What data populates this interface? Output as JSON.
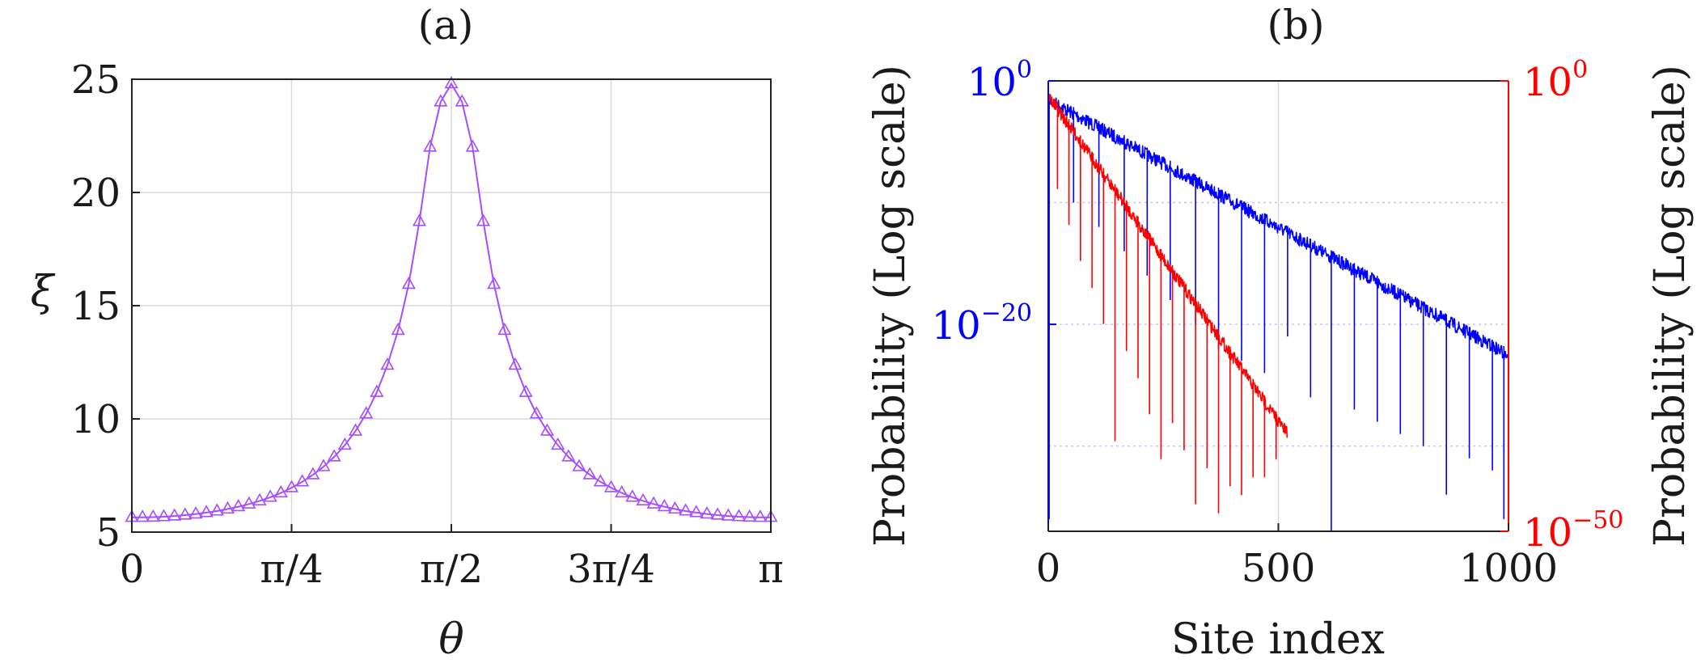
{
  "chart_data": [
    {
      "type": "line",
      "title": "(a)",
      "xlabel": "θ",
      "ylabel": "ξ",
      "xlim": [
        0,
        3.14159
      ],
      "ylim": [
        5,
        25
      ],
      "grid": true,
      "xticks": [
        {
          "value": 0,
          "label": "0"
        },
        {
          "value": 0.7854,
          "label": "π/4"
        },
        {
          "value": 1.5708,
          "label": "π/2"
        },
        {
          "value": 2.3562,
          "label": "3π/4"
        },
        {
          "value": 3.14159,
          "label": "π"
        }
      ],
      "yticks": [
        {
          "value": 5,
          "label": "5"
        },
        {
          "value": 10,
          "label": "10"
        },
        {
          "value": 15,
          "label": "15"
        },
        {
          "value": 20,
          "label": "20"
        },
        {
          "value": 25,
          "label": "25"
        }
      ],
      "series": [
        {
          "name": "ξ(θ)",
          "color": "#a64dff",
          "marker": "triangle",
          "x": [
            0.0,
            0.0524,
            0.1047,
            0.1571,
            0.2094,
            0.2618,
            0.3142,
            0.3665,
            0.4189,
            0.4712,
            0.5236,
            0.576,
            0.6283,
            0.6807,
            0.733,
            0.7854,
            0.8378,
            0.8901,
            0.9425,
            0.9948,
            1.0472,
            1.0996,
            1.1519,
            1.2043,
            1.2566,
            1.309,
            1.3614,
            1.4137,
            1.4661,
            1.5184,
            1.5708,
            1.6232,
            1.6755,
            1.7279,
            1.7802,
            1.8326,
            1.885,
            1.9373,
            1.9897,
            2.042,
            2.0944,
            2.1468,
            2.1991,
            2.2515,
            2.3038,
            2.3562,
            2.4086,
            2.4609,
            2.5133,
            2.5656,
            2.618,
            2.6704,
            2.7227,
            2.7751,
            2.8274,
            2.8798,
            2.9322,
            2.9845,
            3.0369,
            3.0892,
            3.1416
          ],
          "y": [
            5.65,
            5.65,
            5.66,
            5.68,
            5.71,
            5.75,
            5.8,
            5.86,
            5.93,
            6.02,
            6.12,
            6.24,
            6.38,
            6.54,
            6.73,
            6.96,
            7.22,
            7.53,
            7.89,
            8.32,
            8.84,
            9.46,
            10.22,
            11.17,
            12.37,
            13.91,
            15.94,
            18.72,
            22.0,
            24.0,
            24.8,
            24.0,
            22.0,
            18.72,
            15.94,
            13.91,
            12.37,
            11.17,
            10.22,
            9.46,
            8.84,
            8.32,
            7.89,
            7.53,
            7.22,
            6.96,
            6.73,
            6.54,
            6.38,
            6.24,
            6.12,
            6.02,
            5.93,
            5.86,
            5.8,
            5.75,
            5.71,
            5.68,
            5.66,
            5.65,
            5.65
          ]
        }
      ]
    },
    {
      "type": "line",
      "title": "(b)",
      "xlabel": "Site index",
      "ylabel_left": "Probability (Log scale)",
      "ylabel_right": "Probability (Log scale)",
      "xlim": [
        0,
        1000
      ],
      "xticks": [
        {
          "value": 0,
          "label": "0"
        },
        {
          "value": 500,
          "label": "500"
        },
        {
          "value": 1000,
          "label": "1000"
        }
      ],
      "left_axis": {
        "color": "#0000ff",
        "scale": "log10",
        "ylim_exp": [
          -37,
          0
        ],
        "ticks": [
          {
            "exp": 0,
            "base": "10",
            "sup": "0"
          },
          {
            "exp": -20,
            "base": "10",
            "sup": "−20"
          }
        ]
      },
      "right_axis": {
        "color": "#ff0000",
        "scale": "log10",
        "ylim_exp": [
          -50,
          0
        ],
        "ticks": [
          {
            "exp": 0,
            "base": "10",
            "sup": "0"
          },
          {
            "exp": -50,
            "base": "10",
            "sup": "−50"
          }
        ]
      },
      "series": [
        {
          "name": "blue (left axis)",
          "axis": "left",
          "color": "#0000ff",
          "start_log10": -1,
          "end_log10": -22,
          "x_end": 1000,
          "dips": [
            {
              "x": 2,
              "log10": -36
            },
            {
              "x": 55,
              "log10": -10
            },
            {
              "x": 110,
              "log10": -12
            },
            {
              "x": 165,
              "log10": -14
            },
            {
              "x": 215,
              "log10": -16
            },
            {
              "x": 265,
              "log10": -18
            },
            {
              "x": 320,
              "log10": -20
            },
            {
              "x": 370,
              "log10": -22
            },
            {
              "x": 420,
              "log10": -23
            },
            {
              "x": 470,
              "log10": -24
            },
            {
              "x": 520,
              "log10": -21
            },
            {
              "x": 570,
              "log10": -26
            },
            {
              "x": 615,
              "log10": -37
            },
            {
              "x": 665,
              "log10": -27
            },
            {
              "x": 715,
              "log10": -28
            },
            {
              "x": 765,
              "log10": -29
            },
            {
              "x": 815,
              "log10": -30
            },
            {
              "x": 865,
              "log10": -34
            },
            {
              "x": 915,
              "log10": -31
            },
            {
              "x": 965,
              "log10": -32
            },
            {
              "x": 990,
              "log10": -36
            }
          ]
        },
        {
          "name": "red (right axis)",
          "axis": "right",
          "color": "#ff0000",
          "start_log10": -1,
          "end_log10": -38.5,
          "x_end": 520,
          "dips": [
            {
              "x": 20,
              "log10": -12
            },
            {
              "x": 45,
              "log10": -16
            },
            {
              "x": 70,
              "log10": -20
            },
            {
              "x": 95,
              "log10": -23
            },
            {
              "x": 120,
              "log10": -27
            },
            {
              "x": 145,
              "log10": -40
            },
            {
              "x": 170,
              "log10": -30
            },
            {
              "x": 195,
              "log10": -33
            },
            {
              "x": 220,
              "log10": -37
            },
            {
              "x": 245,
              "log10": -42
            },
            {
              "x": 270,
              "log10": -38
            },
            {
              "x": 295,
              "log10": -41
            },
            {
              "x": 320,
              "log10": -47
            },
            {
              "x": 345,
              "log10": -43
            },
            {
              "x": 370,
              "log10": -48
            },
            {
              "x": 395,
              "log10": -45
            },
            {
              "x": 420,
              "log10": -46
            },
            {
              "x": 445,
              "log10": -44
            },
            {
              "x": 470,
              "log10": -44
            },
            {
              "x": 495,
              "log10": -42
            }
          ]
        }
      ]
    }
  ]
}
